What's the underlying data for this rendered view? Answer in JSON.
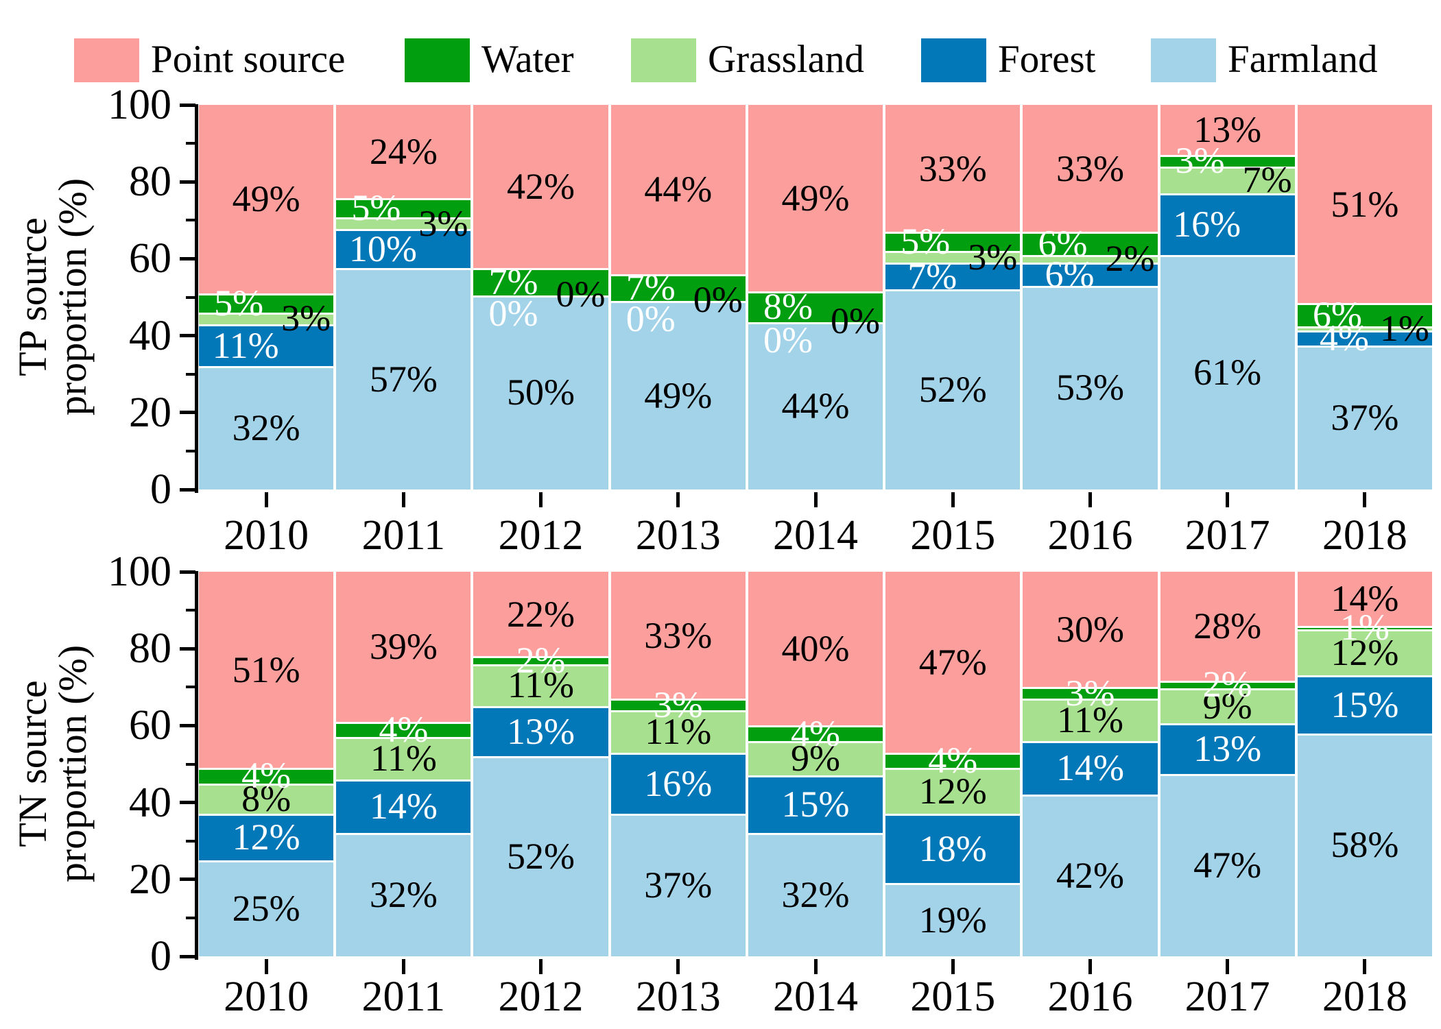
{
  "legend": {
    "items": [
      {
        "label": "Point source",
        "color": "#FC9F9C"
      },
      {
        "label": "Water",
        "color": "#019E10"
      },
      {
        "label": "Grassland",
        "color": "#A7E08F"
      },
      {
        "label": "Forest",
        "color": "#0378B8"
      },
      {
        "label": "Farmland",
        "color": "#A3D3E9"
      }
    ]
  },
  "chart_data": [
    {
      "type": "bar",
      "stacked": true,
      "panel": "TP",
      "ylabel": "TP source proportion (%)",
      "ylabel_lines": [
        "TP source",
        "proportion (%)"
      ],
      "xlabel": "",
      "categories": [
        "2010",
        "2011",
        "2012",
        "2013",
        "2014",
        "2015",
        "2016",
        "2017",
        "2018"
      ],
      "ylim": [
        0,
        100
      ],
      "yticks": [
        0,
        20,
        40,
        60,
        80,
        100
      ],
      "grid": false,
      "legend_position": "top",
      "series": [
        {
          "name": "Farmland",
          "color": "#A3D3E9",
          "label_color": "#000000",
          "values": [
            32,
            57,
            50,
            49,
            44,
            52,
            53,
            61,
            37
          ]
        },
        {
          "name": "Forest",
          "color": "#0378B8",
          "label_color": "#FFFFFF",
          "values": [
            11,
            10,
            0,
            0,
            0,
            7,
            6,
            16,
            4
          ]
        },
        {
          "name": "Grassland",
          "color": "#A7E08F",
          "label_color": "#000000",
          "values": [
            3,
            3,
            0,
            0,
            0,
            3,
            2,
            7,
            1
          ]
        },
        {
          "name": "Water",
          "color": "#019E10",
          "label_color": "#FFFFFF",
          "values": [
            5,
            5,
            7,
            7,
            8,
            5,
            6,
            3,
            6
          ]
        },
        {
          "name": "Point source",
          "color": "#FC9F9C",
          "label_color": "#000000",
          "values": [
            49,
            24,
            42,
            44,
            49,
            33,
            33,
            13,
            51
          ]
        }
      ]
    },
    {
      "type": "bar",
      "stacked": true,
      "panel": "TN",
      "ylabel": "TN source proportion (%)",
      "ylabel_lines": [
        "TN source",
        "proportion (%)"
      ],
      "xlabel": "",
      "categories": [
        "2010",
        "2011",
        "2012",
        "2013",
        "2014",
        "2015",
        "2016",
        "2017",
        "2018"
      ],
      "ylim": [
        0,
        100
      ],
      "yticks": [
        0,
        20,
        40,
        60,
        80,
        100
      ],
      "grid": false,
      "legend_position": "top",
      "series": [
        {
          "name": "Farmland",
          "color": "#A3D3E9",
          "label_color": "#000000",
          "values": [
            25,
            32,
            52,
            37,
            32,
            19,
            42,
            47,
            58
          ]
        },
        {
          "name": "Forest",
          "color": "#0378B8",
          "label_color": "#FFFFFF",
          "values": [
            12,
            14,
            13,
            16,
            15,
            18,
            14,
            13,
            15
          ]
        },
        {
          "name": "Grassland",
          "color": "#A7E08F",
          "label_color": "#000000",
          "values": [
            8,
            11,
            11,
            11,
            9,
            12,
            11,
            9,
            12
          ]
        },
        {
          "name": "Water",
          "color": "#019E10",
          "label_color": "#FFFFFF",
          "values": [
            4,
            4,
            2,
            3,
            4,
            4,
            3,
            2,
            1
          ]
        },
        {
          "name": "Point source",
          "color": "#FC9F9C",
          "label_color": "#000000",
          "values": [
            51,
            39,
            22,
            33,
            40,
            47,
            30,
            28,
            14
          ]
        }
      ]
    }
  ]
}
